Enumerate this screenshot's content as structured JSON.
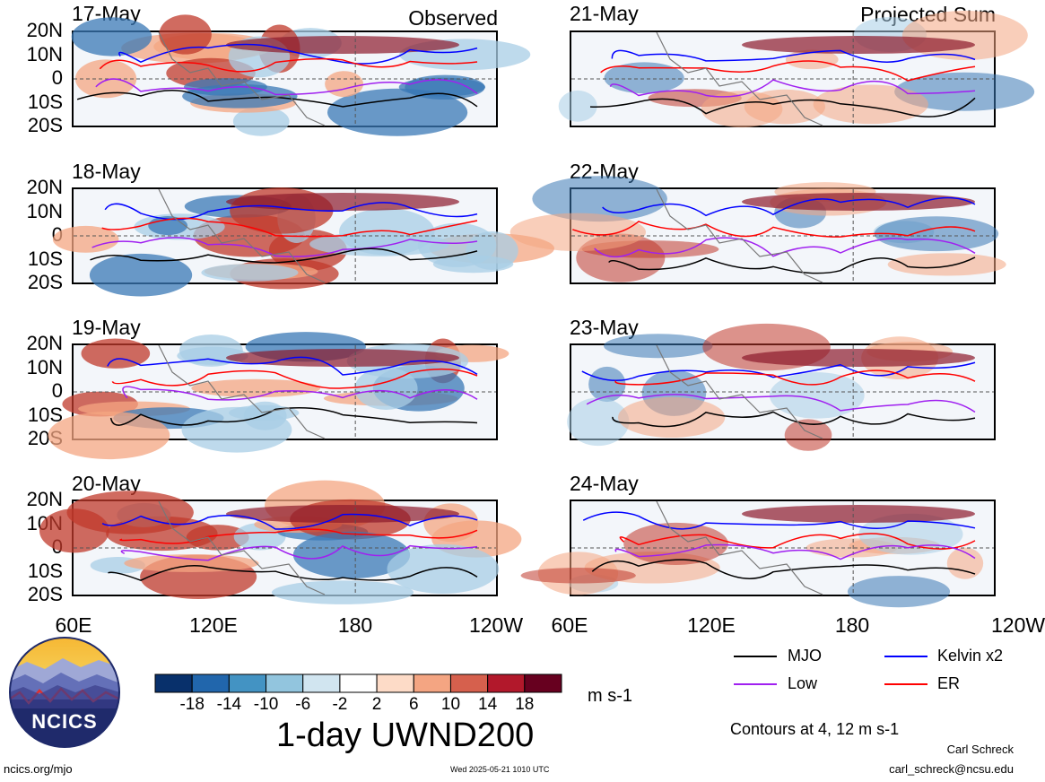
{
  "figure": {
    "title": "1-day UWND200",
    "units": "m s-1",
    "contour_note": "Contours at 4, 12 m s-1",
    "timestamp": "Wed 2025-05-21 1010 UTC",
    "site": "ncics.org/mjo",
    "author": "Carl Schreck",
    "email": "carl_schreck@ncsu.edu",
    "logo_text": "NCICS"
  },
  "columns": {
    "left_tag": "Observed",
    "right_tag": "Projected Sum"
  },
  "panels_left": [
    {
      "date": "17-May"
    },
    {
      "date": "18-May"
    },
    {
      "date": "19-May"
    },
    {
      "date": "20-May"
    }
  ],
  "panels_right": [
    {
      "date": "21-May"
    },
    {
      "date": "22-May"
    },
    {
      "date": "23-May"
    },
    {
      "date": "24-May"
    }
  ],
  "lat_labels": [
    "20N",
    "10N",
    "0",
    "10S",
    "20S"
  ],
  "lon_labels_left": [
    "60E",
    "120E",
    "180",
    "120W"
  ],
  "lon_labels_right": [
    "60E",
    "120E",
    "180",
    "120W"
  ],
  "colorbar": {
    "colors": [
      "#08306b",
      "#2166ac",
      "#4393c3",
      "#92c5de",
      "#d1e5f0",
      "#ffffff",
      "#fddbc7",
      "#f4a582",
      "#d6604d",
      "#b2182b",
      "#67001f"
    ],
    "labels": [
      "-18",
      "-14",
      "-10",
      "-6",
      "-2",
      "2",
      "6",
      "10",
      "14",
      "18"
    ]
  },
  "legend": [
    {
      "label": "MJO",
      "color": "#000000"
    },
    {
      "label": "Kelvin x2",
      "color": "#0000ff"
    },
    {
      "label": "Low",
      "color": "#a020f0"
    },
    {
      "label": "ER",
      "color": "#ff0000"
    }
  ]
}
